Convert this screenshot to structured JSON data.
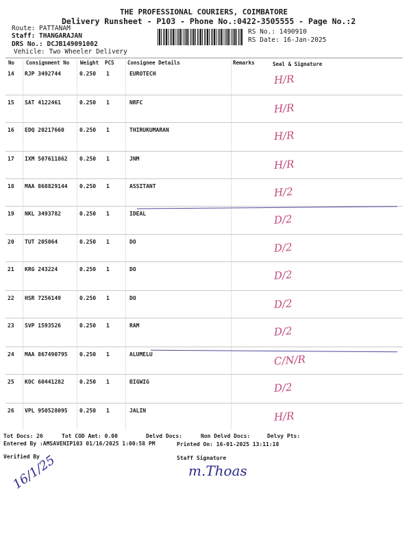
{
  "header": {
    "company": "THE PROFESSIONAL COURIERS, COIMBATORE",
    "subtitle": "Delivery Runsheet - P103 - Phone No.:0422-3505555 - Page No.:2",
    "route": "Route: PATTANAM",
    "staff": "Staff: THANGARAJAN",
    "drs": "DRS No.: DCJB149091002",
    "vehicle": "Vehicle: Two Wheeler Delivery",
    "rs_no": "RS No.: 1490910",
    "rs_date": "RS Date: 16-Jan-2025"
  },
  "columns": [
    "No",
    "Consignment No",
    "Weight",
    "PCS",
    "Consignee Details",
    "Remarks",
    "Seal & Signature"
  ],
  "rows": [
    {
      "no": "14",
      "consignment": "RJP 3492744",
      "weight": "0.250",
      "pcs": "1",
      "consignee": "EUROTECH",
      "remarks": "",
      "signature": "H/R"
    },
    {
      "no": "15",
      "consignment": "SAT 4122461",
      "weight": "0.250",
      "pcs": "1",
      "consignee": "NRFC",
      "remarks": "",
      "signature": "H/R"
    },
    {
      "no": "16",
      "consignment": "EDQ 20217660",
      "weight": "0.250",
      "pcs": "1",
      "consignee": "THIRUKUMARAN",
      "remarks": "",
      "signature": "H/R"
    },
    {
      "no": "17",
      "consignment": "IXM 507611862",
      "weight": "0.250",
      "pcs": "1",
      "consignee": "JNM",
      "remarks": "",
      "signature": "H/R"
    },
    {
      "no": "18",
      "consignment": "MAA 868829144",
      "weight": "0.250",
      "pcs": "1",
      "consignee": "ASSITANT",
      "remarks": "",
      "signature": "H/2"
    },
    {
      "no": "19",
      "consignment": "NKL 3493782",
      "weight": "0.250",
      "pcs": "1",
      "consignee": "IDEAL",
      "remarks": "",
      "signature": "D/2"
    },
    {
      "no": "20",
      "consignment": "TUT 205064",
      "weight": "0.250",
      "pcs": "1",
      "consignee": "DO",
      "remarks": "",
      "signature": "D/2"
    },
    {
      "no": "21",
      "consignment": "KRG 243224",
      "weight": "0.250",
      "pcs": "1",
      "consignee": "DO",
      "remarks": "",
      "signature": "D/2"
    },
    {
      "no": "22",
      "consignment": "HSR 7256149",
      "weight": "0.250",
      "pcs": "1",
      "consignee": "DO",
      "remarks": "",
      "signature": "D/2"
    },
    {
      "no": "23",
      "consignment": "SVP 1593526",
      "weight": "0.250",
      "pcs": "1",
      "consignee": "RAM",
      "remarks": "",
      "signature": "D/2"
    },
    {
      "no": "24",
      "consignment": "MAA 867490795",
      "weight": "0.250",
      "pcs": "1",
      "consignee": "ALUMELU",
      "remarks": "",
      "signature": "C/N/R"
    },
    {
      "no": "25",
      "consignment": "KOC 60441282",
      "weight": "0.250",
      "pcs": "1",
      "consignee": "BIGWIG",
      "remarks": "",
      "signature": "D/2"
    },
    {
      "no": "26",
      "consignment": "VPL 950528095",
      "weight": "0.250",
      "pcs": "1",
      "consignee": "JALIN",
      "remarks": "",
      "signature": "H/R"
    }
  ],
  "footer": {
    "tot_docs": "Tot Docs:  26",
    "tot_cod": "Tot COD Amt:     0.00",
    "delvd_docs": "Delvd Docs:",
    "non_delvd_docs": "Non Delvd Docs:",
    "delvy_pts": "Delvy Pts:",
    "entered_by": "Entered By :AMSAVENIP103 01/16/2025 1:00:58 PM",
    "printed_on": "Printed On: 16-01-2025 13:11:18",
    "verified_by": "Verified By",
    "verified_sign": "16/1/25",
    "staff_signature": "Staff Signature",
    "staff_sign": "m.Thoas"
  },
  "colors": {
    "ink": "#1a1a1a",
    "stamp_ink": "#c0487a",
    "pen_ink": "#2a2a8a"
  }
}
